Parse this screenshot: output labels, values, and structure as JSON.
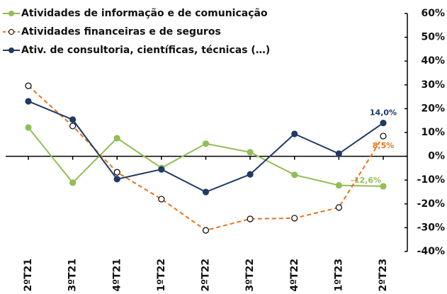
{
  "chart_data": {
    "type": "line",
    "categories": [
      "2ºT21",
      "3ºT21",
      "4ºT21",
      "1ºT22",
      "2ºT22",
      "3ºT22",
      "4ºT22",
      "1ºT23",
      "2ºT23"
    ],
    "series": [
      {
        "name": "Atividades de informação e de comunicação",
        "color": "#93bd57",
        "dashed": false,
        "marker": "filled",
        "values": [
          12.1,
          -11.1,
          7.6,
          -4.9,
          5.3,
          1.7,
          -7.8,
          -12.2,
          -12.6
        ],
        "value_labels": [
          null,
          null,
          null,
          null,
          null,
          null,
          null,
          null,
          "-12,6%"
        ]
      },
      {
        "name": "Atividades financeiras e de seguros",
        "color": "#e8731a",
        "dashed": true,
        "marker": "open",
        "values": [
          29.6,
          12.7,
          -6.7,
          -18.0,
          -31.1,
          -26.3,
          -26.0,
          -21.5,
          8.5
        ],
        "value_labels": [
          null,
          null,
          null,
          null,
          null,
          null,
          null,
          null,
          "8,5%"
        ]
      },
      {
        "name": "Ativ. de consultoria, científicas, técnicas (…)",
        "color": "#1f3a63",
        "dashed": false,
        "marker": "filled",
        "values": [
          23.1,
          15.4,
          -9.6,
          -5.5,
          -15.0,
          -7.6,
          9.4,
          1.1,
          14.0
        ],
        "value_labels": [
          null,
          null,
          null,
          null,
          null,
          null,
          null,
          null,
          "14,0%"
        ]
      }
    ],
    "ylim": [
      -40,
      60
    ],
    "yticks": [
      {
        "value": -40,
        "label": "-40%"
      },
      {
        "value": -30,
        "label": "-30%"
      },
      {
        "value": -20,
        "label": "-20%"
      },
      {
        "value": -10,
        "label": "-10%"
      },
      {
        "value": 0,
        "label": "0%"
      },
      {
        "value": 10,
        "label": "10%"
      },
      {
        "value": 20,
        "label": "20%"
      },
      {
        "value": 30,
        "label": "30%"
      },
      {
        "value": 40,
        "label": "40%"
      },
      {
        "value": 50,
        "label": "50%"
      },
      {
        "value": 60,
        "label": "60%"
      }
    ],
    "y_axis_side": "right",
    "grid": false
  }
}
